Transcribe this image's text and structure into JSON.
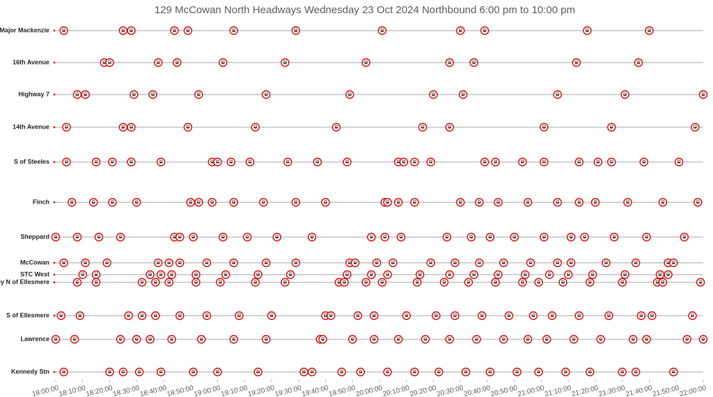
{
  "chart_data": {
    "type": "scatter",
    "title": "129 McCowan North Headways Wednesday 23 Oct 2024 Northbound 6:00 pm to 10:00 pm",
    "marker_color": "#e00000",
    "xlim": [
      1080,
      1320
    ],
    "xticks": [
      {
        "value": 1080,
        "label": "18:00:00"
      },
      {
        "value": 1090,
        "label": "18:10:00"
      },
      {
        "value": 1100,
        "label": "18:20:00"
      },
      {
        "value": 1110,
        "label": "18:30:00"
      },
      {
        "value": 1120,
        "label": "18:40:00"
      },
      {
        "value": 1130,
        "label": "18:50:00"
      },
      {
        "value": 1140,
        "label": "19:00:00"
      },
      {
        "value": 1150,
        "label": "19:10:00"
      },
      {
        "value": 1160,
        "label": "19:20:00"
      },
      {
        "value": 1170,
        "label": "19:30:00"
      },
      {
        "value": 1180,
        "label": "19:40:00"
      },
      {
        "value": 1190,
        "label": "19:50:00"
      },
      {
        "value": 1200,
        "label": "20:00:00"
      },
      {
        "value": 1210,
        "label": "20:10:00"
      },
      {
        "value": 1220,
        "label": "20:20:00"
      },
      {
        "value": 1230,
        "label": "20:30:00"
      },
      {
        "value": 1240,
        "label": "20:40:00"
      },
      {
        "value": 1250,
        "label": "20:50:00"
      },
      {
        "value": 1260,
        "label": "21:00:00"
      },
      {
        "value": 1270,
        "label": "21:10:00"
      },
      {
        "value": 1280,
        "label": "21:20:00"
      },
      {
        "value": 1290,
        "label": "21:30:00"
      },
      {
        "value": 1300,
        "label": "21:40:00"
      },
      {
        "value": 1310,
        "label": "21:50:00"
      },
      {
        "value": 1320,
        "label": "22:00:00"
      }
    ],
    "series": [
      {
        "name": "S of Major Mackenzie",
        "x": [
          1083,
          1105,
          1108,
          1124,
          1129,
          1146,
          1169,
          1201,
          1230,
          1239,
          1277,
          1300
        ]
      },
      {
        "name": "16th Avenue",
        "x": [
          1098,
          1100,
          1118,
          1125,
          1142,
          1165,
          1195,
          1226,
          1235,
          1273,
          1296
        ]
      },
      {
        "name": "Highway 7",
        "x": [
          1088,
          1091,
          1109,
          1116,
          1133,
          1158,
          1189,
          1220,
          1231,
          1266,
          1291,
          1320
        ]
      },
      {
        "name": "14th Avenue",
        "x": [
          1084,
          1105,
          1108,
          1129,
          1154,
          1184,
          1216,
          1226,
          1261,
          1286,
          1317
        ]
      },
      {
        "name": "S of Steeles",
        "x": [
          1084,
          1095,
          1101,
          1108,
          1119,
          1138,
          1140,
          1145,
          1152,
          1166,
          1177,
          1188,
          1207,
          1209,
          1213,
          1219,
          1239,
          1243,
          1253,
          1261,
          1274,
          1281,
          1286,
          1298,
          1311
        ]
      },
      {
        "name": "Finch",
        "x": [
          1086,
          1094,
          1101,
          1110,
          1130,
          1133,
          1138,
          1146,
          1157,
          1169,
          1180,
          1202,
          1203,
          1207,
          1213,
          1230,
          1237,
          1244,
          1255,
          1266,
          1274,
          1280,
          1292,
          1305,
          1318
        ]
      },
      {
        "name": "Sheppard",
        "x": [
          1080,
          1088,
          1096,
          1104,
          1124,
          1126,
          1131,
          1142,
          1151,
          1162,
          1175,
          1197,
          1202,
          1208,
          1225,
          1234,
          1241,
          1250,
          1261,
          1271,
          1276,
          1287,
          1299,
          1313
        ]
      },
      {
        "name": "McCowan",
        "x": [
          1083,
          1091,
          1099,
          1118,
          1122,
          1126,
          1136,
          1146,
          1158,
          1169,
          1189,
          1191,
          1199,
          1205,
          1219,
          1228,
          1237,
          1246,
          1256,
          1266,
          1271,
          1284,
          1295,
          1307,
          1309
        ]
      },
      {
        "name": "STC West",
        "x": [
          1090,
          1095,
          1115,
          1119,
          1123,
          1132,
          1143,
          1155,
          1167,
          1188,
          1197,
          1203,
          1215,
          1226,
          1235,
          1244,
          1254,
          1263,
          1270,
          1279,
          1291,
          1304,
          1307
        ]
      },
      {
        "name": "Brimley N of Ellesmere",
        "x": [
          1088,
          1095,
          1112,
          1117,
          1122,
          1132,
          1141,
          1154,
          1165,
          1185,
          1187,
          1195,
          1201,
          1214,
          1224,
          1233,
          1243,
          1253,
          1259,
          1268,
          1278,
          1290,
          1303,
          1305,
          1319
        ]
      },
      {
        "name": "S of Ellesmere",
        "x": [
          1082,
          1089,
          1107,
          1112,
          1117,
          1126,
          1136,
          1148,
          1160,
          1180,
          1182,
          1192,
          1198,
          1210,
          1221,
          1228,
          1238,
          1248,
          1257,
          1264,
          1274,
          1285,
          1297,
          1301,
          1316
        ]
      },
      {
        "name": "Lawrence",
        "x": [
          1080,
          1087,
          1104,
          1110,
          1115,
          1123,
          1134,
          1146,
          1158,
          1178,
          1179,
          1190,
          1198,
          1207,
          1217,
          1226,
          1236,
          1246,
          1255,
          1262,
          1272,
          1282,
          1294,
          1299,
          1314,
          1320
        ]
      },
      {
        "name": "Kennedy Stn",
        "x": [
          1083,
          1100,
          1105,
          1111,
          1119,
          1131,
          1140,
          1155,
          1172,
          1175,
          1186,
          1193,
          1203,
          1213,
          1222,
          1232,
          1241,
          1251,
          1259,
          1269,
          1278,
          1290,
          1295,
          1309
        ]
      }
    ]
  }
}
